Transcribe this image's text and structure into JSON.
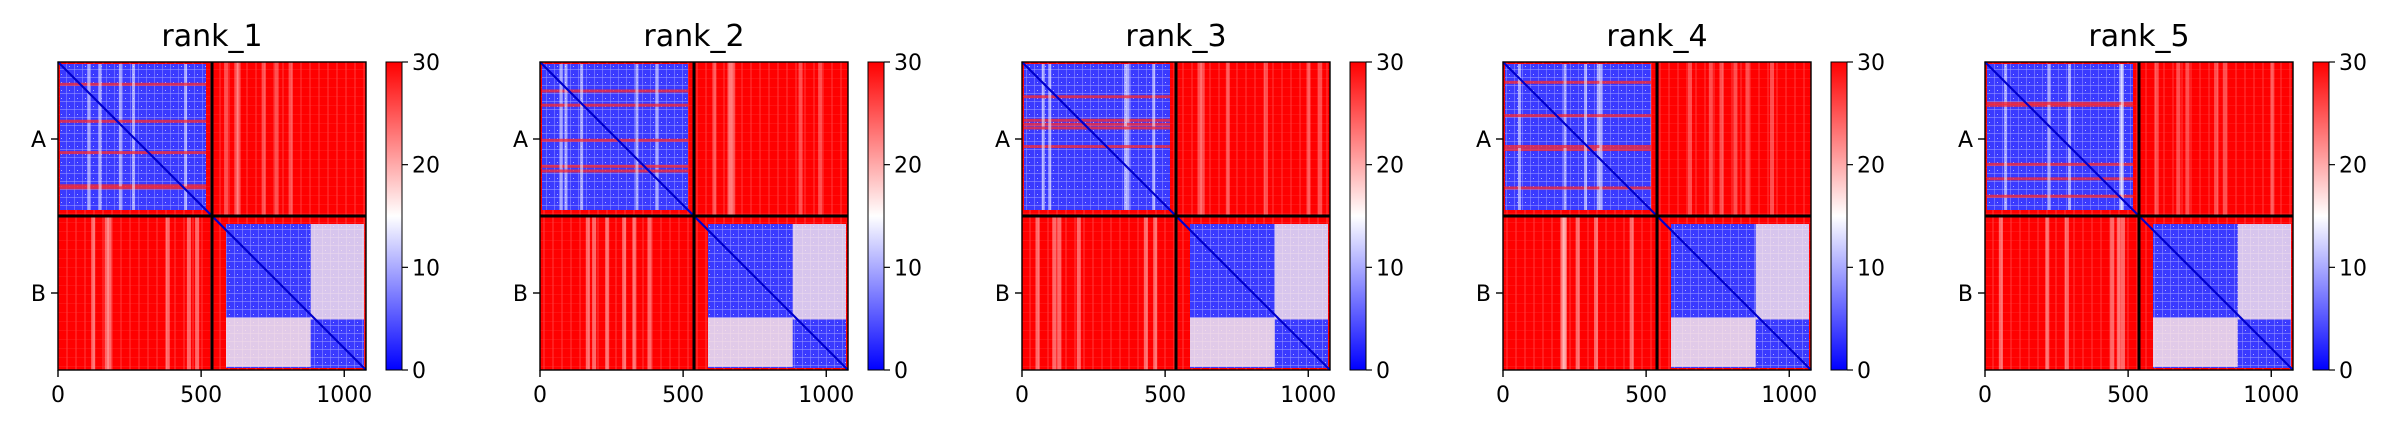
{
  "chart_data": [
    {
      "type": "heatmap",
      "title": "rank_1",
      "x_ticks": [
        "0",
        "500",
        "1000"
      ],
      "x_tick_values": [
        0,
        500,
        1000
      ],
      "xlim": [
        0,
        1076
      ],
      "y_tick_labels": [
        "A",
        "B"
      ],
      "chain_boundary": 538,
      "colorbar": {
        "vmin": 0,
        "vmax": 30,
        "ticks": [
          "0",
          "10",
          "20",
          "30"
        ],
        "colors": [
          "#0000ff",
          "#ffffff",
          "#ff0000"
        ]
      },
      "blocks": {
        "A-A": "low (blue) with scattered high-error rows/cols",
        "B-B": "low (blue)",
        "A-B": "high (red)",
        "B-A": "high (red)"
      }
    },
    {
      "type": "heatmap",
      "title": "rank_2",
      "x_ticks": [
        "0",
        "500",
        "1000"
      ],
      "x_tick_values": [
        0,
        500,
        1000
      ],
      "xlim": [
        0,
        1076
      ],
      "y_tick_labels": [
        "A",
        "B"
      ],
      "chain_boundary": 538,
      "colorbar": {
        "vmin": 0,
        "vmax": 30,
        "ticks": [
          "0",
          "10",
          "20",
          "30"
        ],
        "colors": [
          "#0000ff",
          "#ffffff",
          "#ff0000"
        ]
      },
      "blocks": {
        "A-A": "low (blue) with scattered high-error rows/cols",
        "B-B": "low (blue)",
        "A-B": "high (red)",
        "B-A": "high (red)"
      }
    },
    {
      "type": "heatmap",
      "title": "rank_3",
      "x_ticks": [
        "0",
        "500",
        "1000"
      ],
      "x_tick_values": [
        0,
        500,
        1000
      ],
      "xlim": [
        0,
        1076
      ],
      "y_tick_labels": [
        "A",
        "B"
      ],
      "chain_boundary": 538,
      "colorbar": {
        "vmin": 0,
        "vmax": 30,
        "ticks": [
          "0",
          "10",
          "20",
          "30"
        ],
        "colors": [
          "#0000ff",
          "#ffffff",
          "#ff0000"
        ]
      },
      "blocks": {
        "A-A": "low (blue) with scattered high-error rows/cols",
        "B-B": "low (blue)",
        "A-B": "high (red)",
        "B-A": "high (red)"
      }
    },
    {
      "type": "heatmap",
      "title": "rank_4",
      "x_ticks": [
        "0",
        "500",
        "1000"
      ],
      "x_tick_values": [
        0,
        500,
        1000
      ],
      "xlim": [
        0,
        1076
      ],
      "y_tick_labels": [
        "A",
        "B"
      ],
      "chain_boundary": 538,
      "colorbar": {
        "vmin": 0,
        "vmax": 30,
        "ticks": [
          "0",
          "10",
          "20",
          "30"
        ],
        "colors": [
          "#0000ff",
          "#ffffff",
          "#ff0000"
        ]
      },
      "blocks": {
        "A-A": "low (blue) with scattered high-error rows/cols",
        "B-B": "low (blue)",
        "A-B": "high (red)",
        "B-A": "high (red)"
      }
    },
    {
      "type": "heatmap",
      "title": "rank_5",
      "x_ticks": [
        "0",
        "500",
        "1000"
      ],
      "x_tick_values": [
        0,
        500,
        1000
      ],
      "xlim": [
        0,
        1076
      ],
      "y_tick_labels": [
        "A",
        "B"
      ],
      "chain_boundary": 538,
      "colorbar": {
        "vmin": 0,
        "vmax": 30,
        "ticks": [
          "0",
          "10",
          "20",
          "30"
        ],
        "colors": [
          "#0000ff",
          "#ffffff",
          "#ff0000"
        ]
      },
      "blocks": {
        "A-A": "low (blue) with scattered high-error rows/cols",
        "B-B": "low (blue)",
        "A-B": "high (red)",
        "B-A": "high (red)"
      }
    }
  ]
}
